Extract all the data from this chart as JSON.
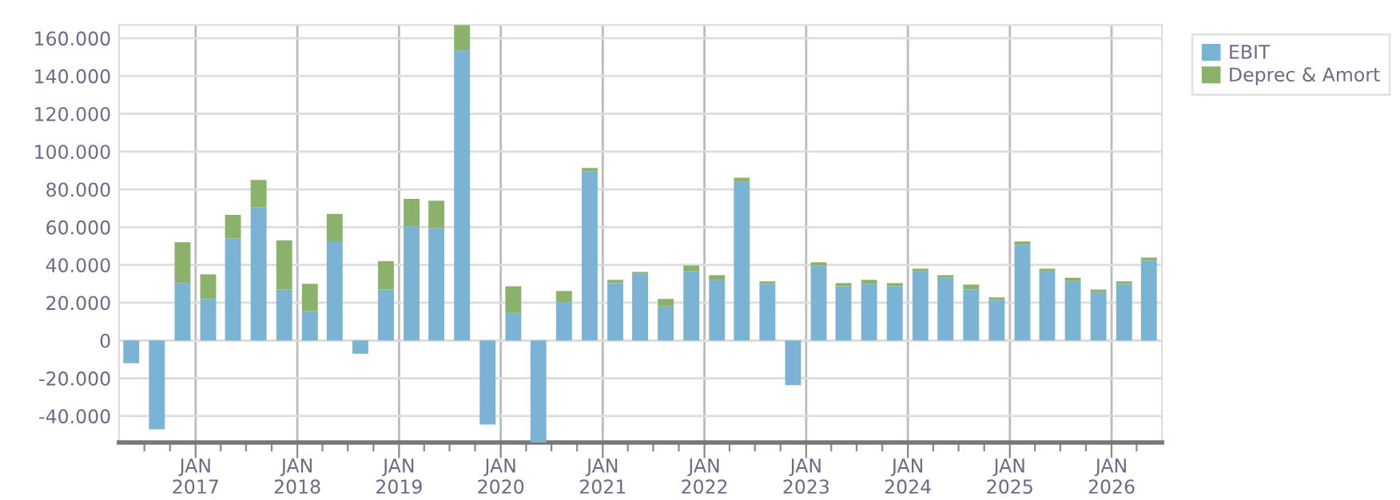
{
  "chart_data": {
    "type": "bar",
    "stacked": true,
    "x": [
      "2016-05-15",
      "2016-08-15",
      "2016-11-15",
      "2017-02-15",
      "2017-05-15",
      "2017-08-15",
      "2017-11-15",
      "2018-02-15",
      "2018-05-15",
      "2018-08-15",
      "2018-11-15",
      "2019-02-15",
      "2019-05-15",
      "2019-08-15",
      "2019-11-15",
      "2020-02-15",
      "2020-05-15",
      "2020-08-15",
      "2020-11-15",
      "2021-02-15",
      "2021-05-15",
      "2021-08-15",
      "2021-11-15",
      "2022-02-15",
      "2022-05-15",
      "2022-08-15",
      "2022-11-15",
      "2023-02-15",
      "2023-05-15",
      "2023-08-15",
      "2023-11-15",
      "2024-02-15",
      "2024-05-15",
      "2024-08-15",
      "2024-11-15",
      "2025-02-15",
      "2025-05-15",
      "2025-08-15",
      "2025-11-15",
      "2026-02-15",
      "2026-05-15"
    ],
    "series": [
      {
        "name": "EBIT",
        "color": "#7ab3d4",
        "values": [
          -12000,
          -47000,
          30500,
          22000,
          54000,
          70500,
          27000,
          15500,
          52500,
          -7000,
          27000,
          60500,
          59500,
          153500,
          -44500,
          14600,
          -54000,
          20300,
          89600,
          30400,
          35500,
          18000,
          36600,
          32100,
          83900,
          29900,
          -23700,
          39700,
          28700,
          29900,
          28700,
          36600,
          33200,
          27000,
          21400,
          50700,
          36600,
          31500,
          25600,
          29900,
          42300
        ]
      },
      {
        "name": "Deprec & Amort",
        "color": "#8bb26a",
        "values": [
          0,
          0,
          21500,
          13000,
          12500,
          14500,
          26000,
          14500,
          14500,
          0,
          15000,
          14500,
          14500,
          13500,
          0,
          14100,
          0,
          5900,
          1700,
          1700,
          800,
          4000,
          3100,
          2500,
          2300,
          1400,
          0,
          1700,
          1700,
          2200,
          1700,
          1400,
          1400,
          2600,
          1400,
          1700,
          1400,
          1700,
          1400,
          1400,
          1600
        ]
      }
    ],
    "xlim": [
      "2016-04-01",
      "2026-07-01"
    ],
    "xticks": [
      {
        "value": "2016-07-01",
        "label": null
      },
      {
        "value": "2016-10-01",
        "label": null
      },
      {
        "value": "2017-01-01",
        "label": "JAN\n2017"
      },
      {
        "value": "2017-04-01",
        "label": null
      },
      {
        "value": "2017-07-01",
        "label": null
      },
      {
        "value": "2017-10-01",
        "label": null
      },
      {
        "value": "2018-01-01",
        "label": "JAN\n2018"
      },
      {
        "value": "2018-04-01",
        "label": null
      },
      {
        "value": "2018-07-01",
        "label": null
      },
      {
        "value": "2018-10-01",
        "label": null
      },
      {
        "value": "2019-01-01",
        "label": "JAN\n2019"
      },
      {
        "value": "2019-04-01",
        "label": null
      },
      {
        "value": "2019-07-01",
        "label": null
      },
      {
        "value": "2019-10-01",
        "label": null
      },
      {
        "value": "2020-01-01",
        "label": "JAN\n2020"
      },
      {
        "value": "2020-04-01",
        "label": null
      },
      {
        "value": "2020-07-01",
        "label": null
      },
      {
        "value": "2020-10-01",
        "label": null
      },
      {
        "value": "2021-01-01",
        "label": "JAN\n2021"
      },
      {
        "value": "2021-04-01",
        "label": null
      },
      {
        "value": "2021-07-01",
        "label": null
      },
      {
        "value": "2021-10-01",
        "label": null
      },
      {
        "value": "2022-01-01",
        "label": "JAN\n2022"
      },
      {
        "value": "2022-04-01",
        "label": null
      },
      {
        "value": "2022-07-01",
        "label": null
      },
      {
        "value": "2022-10-01",
        "label": null
      },
      {
        "value": "2023-01-01",
        "label": "JAN\n2023"
      },
      {
        "value": "2023-04-01",
        "label": null
      },
      {
        "value": "2023-07-01",
        "label": null
      },
      {
        "value": "2023-10-01",
        "label": null
      },
      {
        "value": "2024-01-01",
        "label": "JAN\n2024"
      },
      {
        "value": "2024-04-01",
        "label": null
      },
      {
        "value": "2024-07-01",
        "label": null
      },
      {
        "value": "2024-10-01",
        "label": null
      },
      {
        "value": "2025-01-01",
        "label": "JAN\n2025"
      },
      {
        "value": "2025-04-01",
        "label": null
      },
      {
        "value": "2025-07-01",
        "label": null
      },
      {
        "value": "2025-10-01",
        "label": null
      },
      {
        "value": "2026-01-01",
        "label": "JAN\n2026"
      },
      {
        "value": "2026-04-01",
        "label": null
      }
    ],
    "ylim": [
      -54000,
      167000
    ],
    "yticks": [
      {
        "value": -40000,
        "label": "-40.000"
      },
      {
        "value": -20000,
        "label": "-20.000"
      },
      0,
      {
        "value": 20000,
        "label": "20.000"
      },
      {
        "value": 40000,
        "label": "40.000"
      },
      {
        "value": 60000,
        "label": "60.000"
      },
      {
        "value": 80000,
        "label": "80.000"
      },
      {
        "value": 100000,
        "label": "100.000"
      },
      {
        "value": 120000,
        "label": "120.000"
      },
      {
        "value": 140000,
        "label": "140.000"
      },
      {
        "value": 160000,
        "label": "160.000"
      }
    ],
    "grid": true,
    "legend": "top right"
  }
}
